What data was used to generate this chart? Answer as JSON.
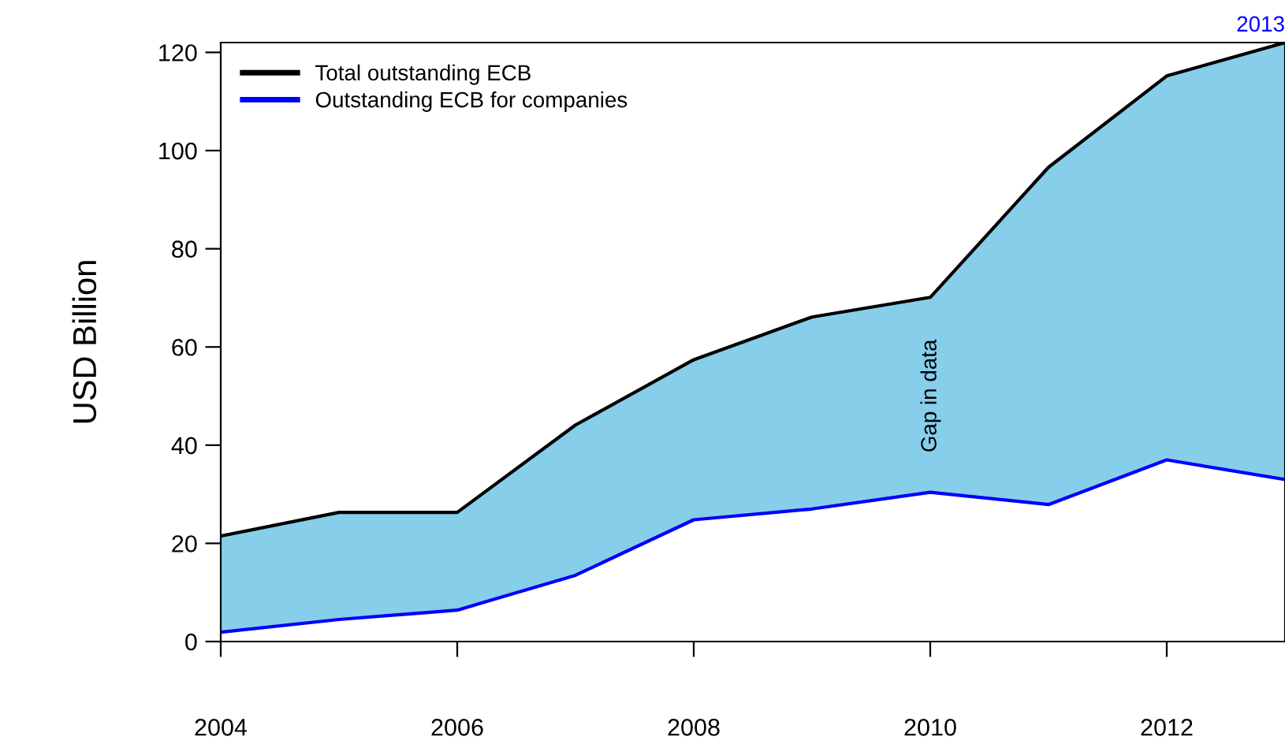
{
  "chart_data": {
    "type": "line",
    "ylabel": "USD Billion",
    "x": [
      2004,
      2005,
      2006,
      2007,
      2008,
      2009,
      2010,
      2011,
      2012,
      2013
    ],
    "series": [
      {
        "name": "Total outstanding ECB",
        "type": "area",
        "color": "#000000",
        "colors": [
          "#87ceeb",
          "#87ceeb",
          "#87ceeb",
          "#87ceeb",
          "#87ceeb",
          "#87ceeb",
          "#87ceeb",
          "#87ceeb",
          "#87ceeb",
          "#87ceeb"
        ],
        "values": [
          21.5,
          26.3,
          26.3,
          44.1,
          57.4,
          66.1,
          70.1,
          96.6,
          115.2,
          122.0
        ]
      },
      {
        "name": "Outstanding ECB for companies",
        "color": "#0000ff",
        "values": [
          1.9,
          4.5,
          6.4,
          13.5,
          24.8,
          27.0,
          30.4,
          27.9,
          37.0,
          33.0
        ]
      }
    ],
    "annotations": [
      "Gap in data",
      {
        "text": "2013",
        "x": 2013,
        "y": 122
      }
    ],
    "xlim": [
      2004,
      2013
    ],
    "ylim": [
      0,
      122
    ],
    "xticks": [
      2004,
      2006,
      2008,
      2010,
      2012
    ],
    "yticks": [
      0,
      20,
      40,
      60,
      80,
      100,
      120
    ],
    "grid": false,
    "legend": "top left",
    "line_style": "solid",
    "marker": "none"
  }
}
